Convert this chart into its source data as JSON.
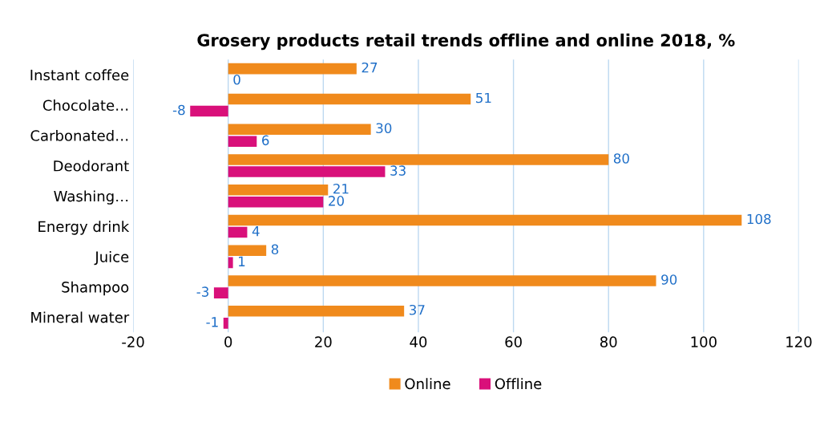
{
  "chart_data": {
    "type": "bar",
    "orientation": "horizontal",
    "title": "Grosery products retail trends offline and online 2018, %",
    "categories": [
      "Instant coffee",
      "Chocolate…",
      "Carbonated…",
      "Deodorant",
      "Washing…",
      "Energy drink",
      "Juice",
      "Shampoo",
      "Mineral water"
    ],
    "series": [
      {
        "name": "Online",
        "color": "#f08a1c",
        "values": [
          27,
          51,
          30,
          80,
          21,
          108,
          8,
          90,
          37
        ]
      },
      {
        "name": "Offline",
        "color": "#d9107a",
        "values": [
          0,
          -8,
          6,
          33,
          20,
          4,
          1,
          -3,
          -1
        ]
      }
    ],
    "xlim": [
      -20,
      120
    ],
    "xticks": [
      -20,
      0,
      20,
      40,
      60,
      80,
      100,
      120
    ],
    "grid": "x",
    "legend": "bottom",
    "data_labels": true
  }
}
